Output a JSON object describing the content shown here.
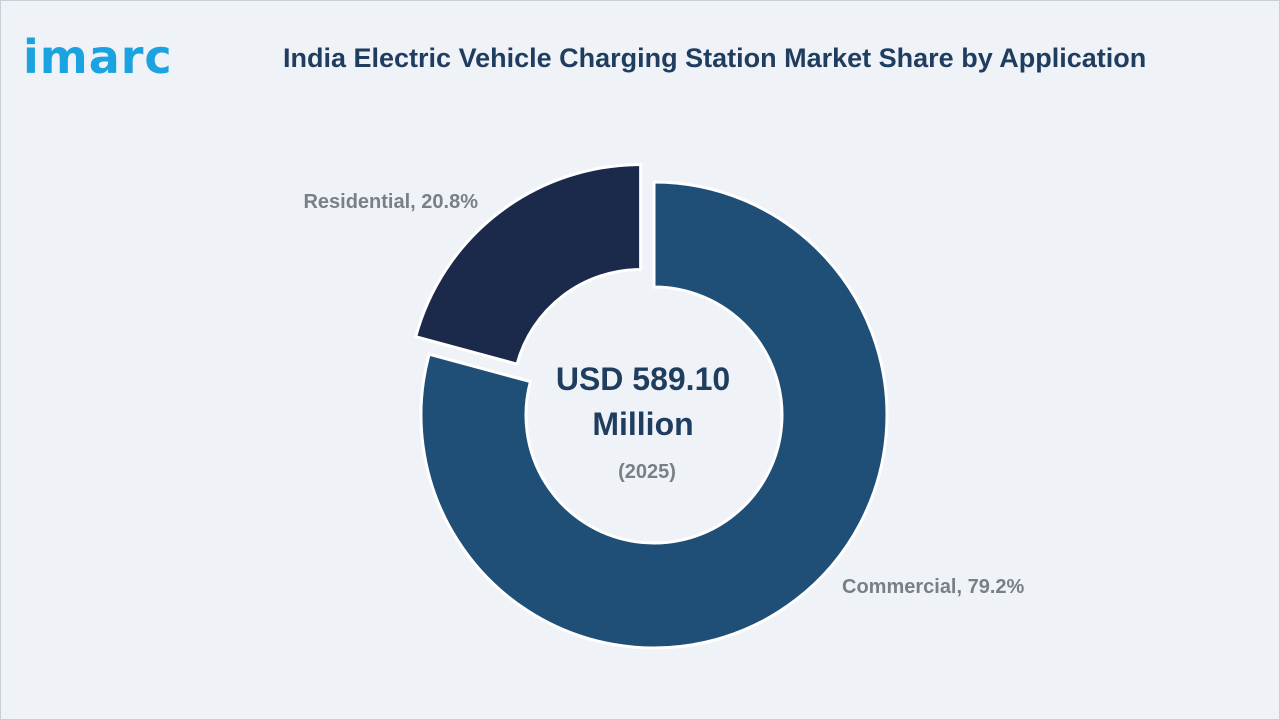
{
  "brand": {
    "logo_text": "imarc",
    "logo_color": "#1aa3e0"
  },
  "title_color": "#1f3d5e",
  "chart_data": {
    "type": "pie",
    "donut": true,
    "title": "India Electric Vehicle Charging Station Market Share by Application",
    "categories": [
      "Commercial",
      "Residential"
    ],
    "values": [
      79.2,
      20.8
    ],
    "value_unit": "%",
    "colors": [
      "#1f4e76",
      "#1b2a4a"
    ],
    "labels": [
      "Commercial, 79.2%",
      "Residential, 20.8%"
    ],
    "exploded": "Residential",
    "legend": "none",
    "center_text": {
      "line1": "USD 589.10",
      "line2": "Million",
      "line3": "(2025)"
    }
  },
  "label_color": "#7a7f87",
  "center_color": "#1f3d5e"
}
